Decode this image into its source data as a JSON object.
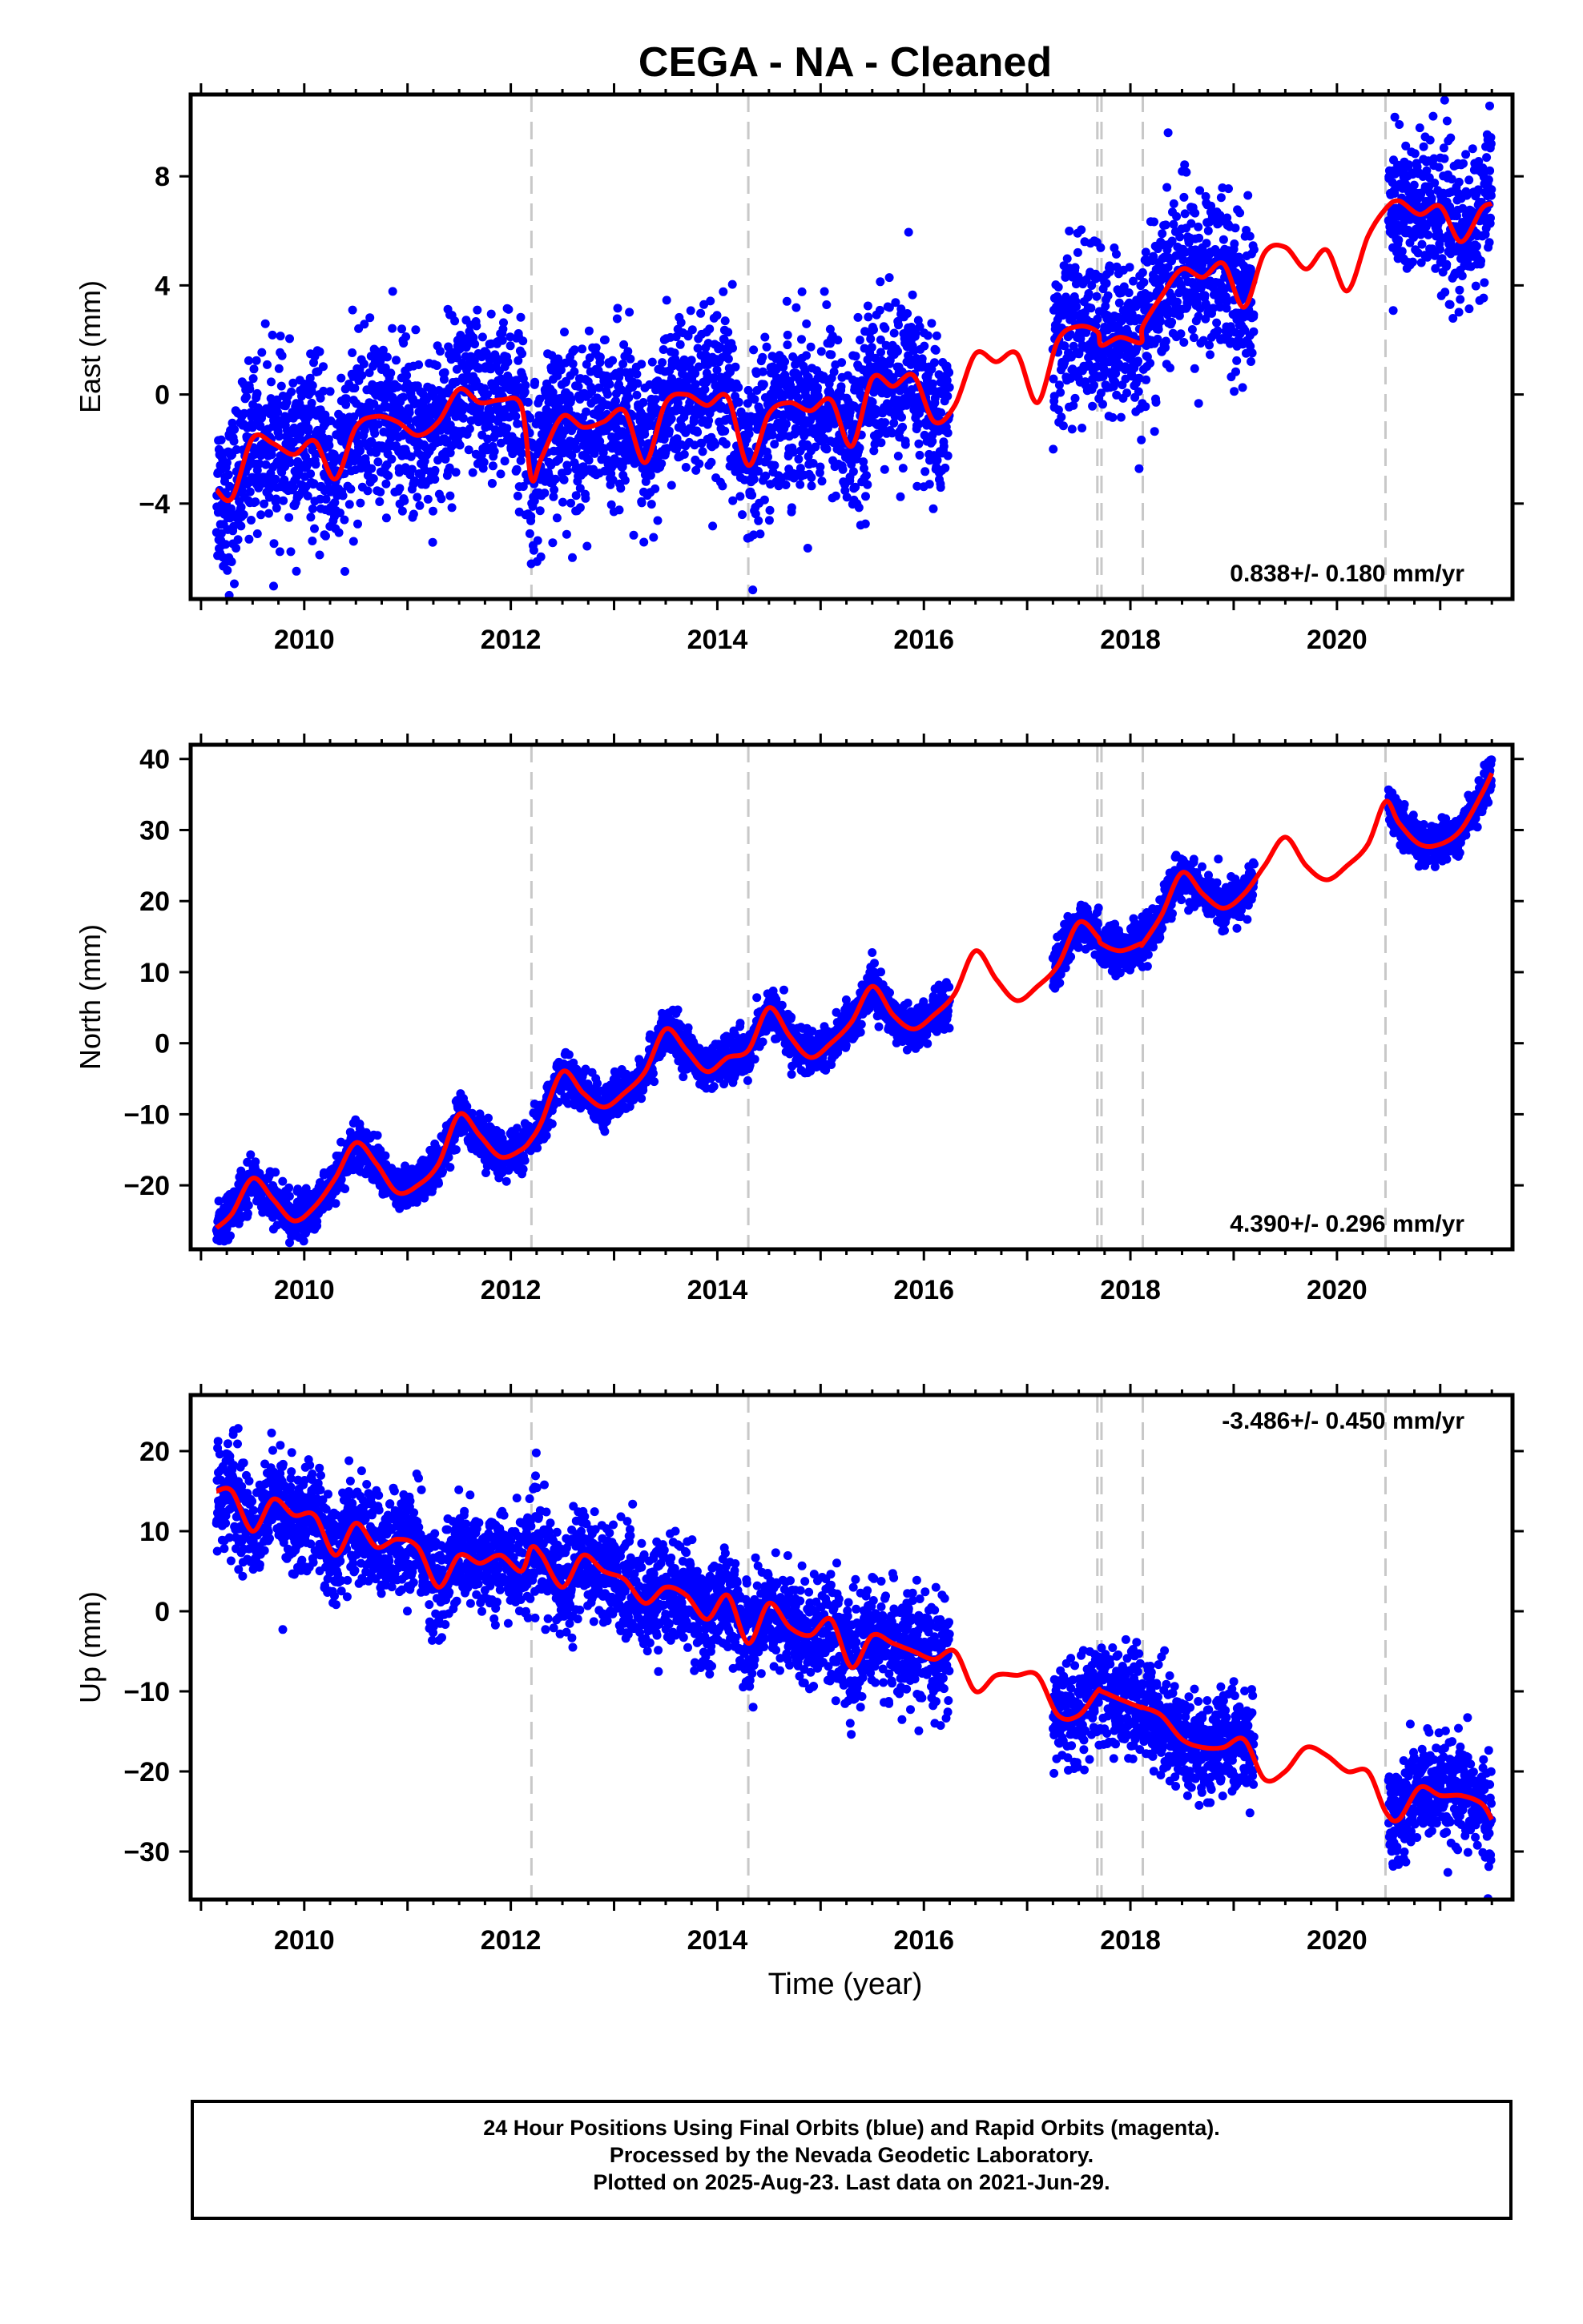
{
  "title": "CEGA  - NA - Cleaned",
  "x_axis_label": "Time (year)",
  "footer": {
    "line1": "24 Hour Positions Using Final Orbits (blue) and Rapid Orbits (magenta).",
    "line2": "Processed by the Nevada Geodetic Laboratory.",
    "line3": "Plotted on 2025-Aug-23. Last data on 2021-Jun-29."
  },
  "colors": {
    "data": "#0000ff",
    "model": "#ff0000",
    "breaks": "#c8c8c8"
  },
  "chart_data": [
    {
      "type": "scatter",
      "title": "CEGA  - NA - Cleaned",
      "ylabel": "East (mm)",
      "xlim": [
        2008.9,
        2021.7
      ],
      "ylim": [
        -7.5,
        11
      ],
      "xticks": [
        2010,
        2012,
        2014,
        2016,
        2018,
        2020
      ],
      "yticks": [
        -4,
        0,
        4,
        8
      ],
      "grid": false,
      "rate_label": "0.838+/- 0.180 mm/yr",
      "rate_position": "bottom-right",
      "breaks": [
        2012.2,
        2014.3,
        2017.68,
        2017.72,
        2018.12,
        2020.47
      ],
      "model": {
        "x": [
          2009.15,
          2009.3,
          2009.5,
          2009.7,
          2009.9,
          2010.1,
          2010.3,
          2010.5,
          2010.7,
          2010.9,
          2011.1,
          2011.3,
          2011.5,
          2011.7,
          2011.9,
          2012.1,
          2012.2,
          2012.3,
          2012.5,
          2012.7,
          2012.9,
          2013.1,
          2013.3,
          2013.5,
          2013.7,
          2013.9,
          2014.1,
          2014.3,
          2014.5,
          2014.7,
          2014.9,
          2015.1,
          2015.3,
          2015.5,
          2015.7,
          2015.9,
          2016.1,
          2016.3,
          2016.5,
          2016.7,
          2016.9,
          2017.1,
          2017.3,
          2017.5,
          2017.68,
          2017.72,
          2017.9,
          2018.1,
          2018.12,
          2018.3,
          2018.5,
          2018.7,
          2018.9,
          2019.1,
          2019.3,
          2019.5,
          2019.7,
          2019.9,
          2020.1,
          2020.3,
          2020.47,
          2020.6,
          2020.8,
          2021.0,
          2021.2,
          2021.4,
          2021.5
        ],
        "y": [
          -3.5,
          -3.8,
          -1.6,
          -1.8,
          -2.2,
          -1.7,
          -3.1,
          -1.2,
          -0.8,
          -1.0,
          -1.5,
          -1.0,
          0.2,
          -0.3,
          -0.2,
          -0.4,
          -3.1,
          -2.3,
          -0.8,
          -1.2,
          -1.0,
          -0.6,
          -2.5,
          -0.3,
          0.0,
          -0.4,
          -0.1,
          -2.6,
          -0.7,
          -0.3,
          -0.6,
          -0.2,
          -1.9,
          0.6,
          0.3,
          0.7,
          -1.0,
          -0.4,
          1.5,
          1.2,
          1.5,
          -0.3,
          2.0,
          2.5,
          2.3,
          1.8,
          2.1,
          1.9,
          2.5,
          3.6,
          4.6,
          4.3,
          4.8,
          3.2,
          5.2,
          5.4,
          4.6,
          5.3,
          3.8,
          5.8,
          6.8,
          7.1,
          6.6,
          6.9,
          5.6,
          6.8,
          7.0
        ]
      },
      "series": [
        {
          "segment": [
            2009.15,
            2016.25
          ],
          "center": "model",
          "scatter": 1.5
        },
        {
          "segment": [
            2017.25,
            2019.2
          ],
          "center": "model",
          "scatter": 1.5
        },
        {
          "segment": [
            2020.5,
            2021.5
          ],
          "center": "model",
          "scatter": 1.4
        }
      ]
    },
    {
      "type": "scatter",
      "ylabel": "North (mm)",
      "xlim": [
        2008.9,
        2021.7
      ],
      "ylim": [
        -29,
        42
      ],
      "xticks": [
        2010,
        2012,
        2014,
        2016,
        2018,
        2020
      ],
      "yticks": [
        -20,
        -10,
        0,
        10,
        20,
        30,
        40
      ],
      "grid": false,
      "rate_label": "4.390+/- 0.296 mm/yr",
      "rate_position": "bottom-right",
      "breaks": [
        2012.2,
        2014.3,
        2017.68,
        2017.72,
        2018.12,
        2020.47
      ],
      "model": {
        "x": [
          2009.15,
          2009.3,
          2009.5,
          2009.7,
          2009.9,
          2010.1,
          2010.3,
          2010.5,
          2010.7,
          2010.9,
          2011.1,
          2011.3,
          2011.5,
          2011.7,
          2011.9,
          2012.1,
          2012.2,
          2012.3,
          2012.5,
          2012.7,
          2012.9,
          2013.1,
          2013.3,
          2013.5,
          2013.7,
          2013.9,
          2014.1,
          2014.3,
          2014.5,
          2014.7,
          2014.9,
          2015.1,
          2015.3,
          2015.5,
          2015.7,
          2015.9,
          2016.1,
          2016.3,
          2016.5,
          2016.7,
          2016.9,
          2017.1,
          2017.3,
          2017.5,
          2017.68,
          2017.72,
          2017.9,
          2018.1,
          2018.12,
          2018.3,
          2018.5,
          2018.7,
          2018.9,
          2019.1,
          2019.3,
          2019.5,
          2019.7,
          2019.9,
          2020.1,
          2020.3,
          2020.47,
          2020.6,
          2020.8,
          2021.0,
          2021.2,
          2021.4,
          2021.5
        ],
        "y": [
          -26,
          -24,
          -19,
          -22,
          -25,
          -23,
          -19,
          -14,
          -17,
          -21,
          -20,
          -17,
          -10,
          -13,
          -16,
          -15,
          -13.5,
          -11,
          -4,
          -7,
          -9,
          -7,
          -4,
          2,
          -1,
          -4,
          -2,
          -1,
          5,
          1,
          -2,
          0,
          3,
          8,
          4,
          2,
          4,
          7,
          13,
          9,
          6,
          8,
          11,
          17,
          15,
          14,
          13,
          14,
          14,
          18,
          24,
          21,
          19,
          21,
          25,
          29,
          25,
          23,
          25,
          28,
          34,
          31,
          28,
          28,
          30,
          35,
          38
        ]
      },
      "series": [
        {
          "segment": [
            2009.15,
            2016.25
          ],
          "center": "model",
          "scatter": 1.5
        },
        {
          "segment": [
            2017.25,
            2019.2
          ],
          "center": "model",
          "scatter": 1.5
        },
        {
          "segment": [
            2020.5,
            2021.5
          ],
          "center": "model",
          "scatter": 1.4
        }
      ]
    },
    {
      "type": "scatter",
      "ylabel": "Up (mm)",
      "xlabel": "Time (year)",
      "xlim": [
        2008.9,
        2021.7
      ],
      "ylim": [
        -36,
        27
      ],
      "xticks": [
        2010,
        2012,
        2014,
        2016,
        2018,
        2020
      ],
      "yticks": [
        -30,
        -20,
        -10,
        0,
        10,
        20
      ],
      "grid": false,
      "rate_label": "-3.486+/- 0.450 mm/yr",
      "rate_position": "top-right",
      "breaks": [
        2012.2,
        2014.3,
        2017.68,
        2017.72,
        2018.12,
        2020.47
      ],
      "model": {
        "x": [
          2009.15,
          2009.3,
          2009.5,
          2009.7,
          2009.9,
          2010.1,
          2010.3,
          2010.5,
          2010.7,
          2010.9,
          2011.1,
          2011.3,
          2011.5,
          2011.7,
          2011.9,
          2012.1,
          2012.2,
          2012.3,
          2012.5,
          2012.7,
          2012.9,
          2013.1,
          2013.3,
          2013.5,
          2013.7,
          2013.9,
          2014.1,
          2014.3,
          2014.5,
          2014.7,
          2014.9,
          2015.1,
          2015.3,
          2015.5,
          2015.7,
          2015.9,
          2016.1,
          2016.3,
          2016.5,
          2016.7,
          2016.9,
          2017.1,
          2017.3,
          2017.5,
          2017.68,
          2017.72,
          2017.9,
          2018.1,
          2018.12,
          2018.3,
          2018.5,
          2018.7,
          2018.9,
          2019.1,
          2019.3,
          2019.5,
          2019.7,
          2019.9,
          2020.1,
          2020.3,
          2020.47,
          2020.6,
          2020.8,
          2021.0,
          2021.2,
          2021.4,
          2021.5
        ],
        "y": [
          15,
          15,
          10,
          14,
          12,
          12,
          7,
          11,
          8,
          9,
          8,
          3,
          7,
          6,
          7,
          5,
          8,
          7,
          3,
          7,
          5,
          4,
          1,
          3,
          2,
          -1,
          2,
          -4,
          1,
          -2,
          -3,
          -1,
          -7,
          -3,
          -4,
          -5,
          -6,
          -5,
          -10,
          -8,
          -8,
          -8,
          -13,
          -13,
          -10,
          -10,
          -11,
          -12,
          -12,
          -13,
          -16,
          -17,
          -17,
          -16,
          -21,
          -20,
          -17,
          -18,
          -20,
          -20,
          -25,
          -26,
          -22,
          -23,
          -23,
          -24,
          -26
        ]
      },
      "series": [
        {
          "segment": [
            2009.15,
            2016.25
          ],
          "center": "model",
          "scatter": 3.2
        },
        {
          "segment": [
            2017.25,
            2019.2
          ],
          "center": "model",
          "scatter": 3.2
        },
        {
          "segment": [
            2020.5,
            2021.5
          ],
          "center": "model",
          "scatter": 3.2
        }
      ]
    }
  ]
}
